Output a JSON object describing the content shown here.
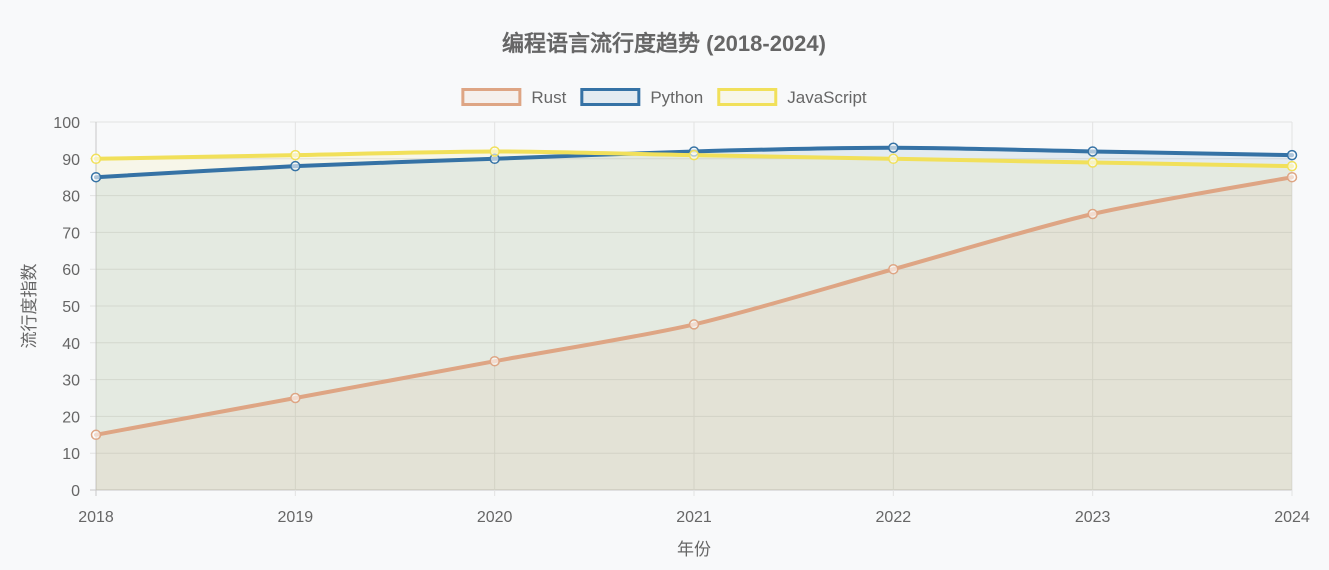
{
  "chart_data": {
    "type": "line",
    "title": "编程语言流行度趋势 (2018-2024)",
    "xlabel": "年份",
    "ylabel": "流行度指数",
    "categories": [
      "2018",
      "2019",
      "2020",
      "2021",
      "2022",
      "2023",
      "2024"
    ],
    "ylim": [
      0,
      100
    ],
    "yticks": [
      0,
      10,
      20,
      30,
      40,
      50,
      60,
      70,
      80,
      90,
      100
    ],
    "grid": true,
    "legend_position": "top",
    "series": [
      {
        "name": "Rust",
        "values": [
          15,
          25,
          35,
          45,
          60,
          75,
          85
        ],
        "color": "#dea584",
        "fill": "rgba(222, 165, 132, 0.1)"
      },
      {
        "name": "Python",
        "values": [
          85,
          88,
          90,
          92,
          93,
          92,
          91
        ],
        "color": "#3572a5",
        "fill": "rgba(53, 114, 165, 0.1)"
      },
      {
        "name": "JavaScript",
        "values": [
          90,
          91,
          92,
          91,
          90,
          89,
          88
        ],
        "color": "#f1e05a",
        "fill": "rgba(241, 224, 90, 0.1)"
      }
    ]
  }
}
